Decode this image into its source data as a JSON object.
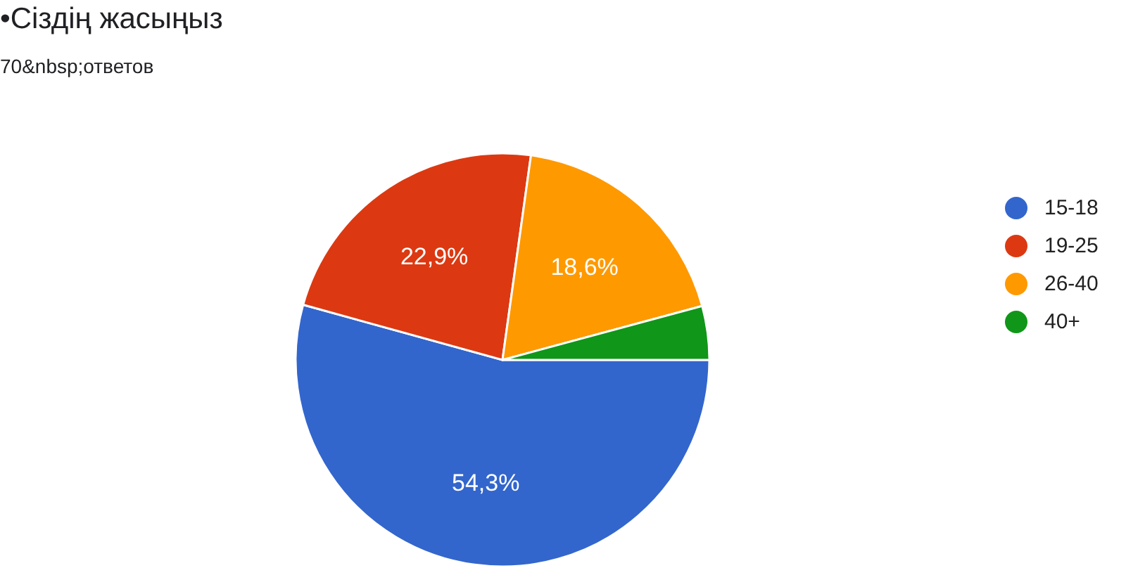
{
  "chart_data": {
    "type": "pie",
    "title": "•Сіздің жасыңыз",
    "subtitle": "70&nbsp;ответов",
    "categories": [
      "15-18",
      "19-25",
      "26-40",
      "40+"
    ],
    "values": [
      54.3,
      22.9,
      18.6,
      4.2
    ],
    "colors": [
      "#3366cc",
      "#dc3912",
      "#ff9900",
      "#109618"
    ],
    "value_labels": [
      "54,3%",
      "22,9%",
      "18,6%",
      null
    ],
    "legend": "right"
  }
}
